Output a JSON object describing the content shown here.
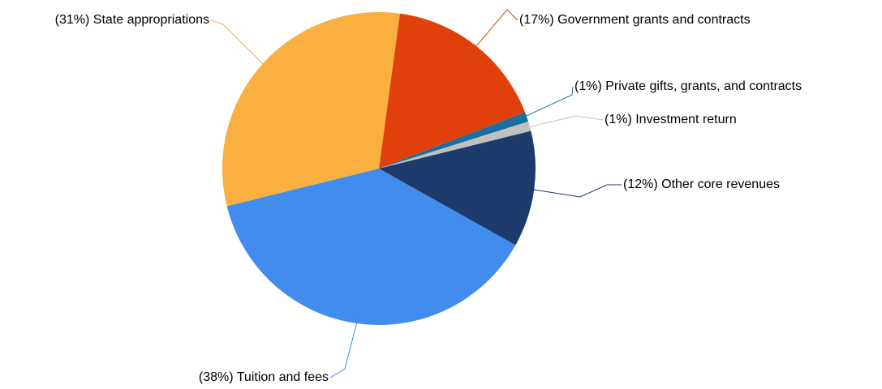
{
  "chart_data": {
    "type": "pie",
    "categories": [
      "Government grants and contracts",
      "Private gifts, grants, and contracts",
      "Investment return",
      "Other core revenues",
      "Tuition and fees",
      "State appropriations"
    ],
    "values": [
      17,
      1,
      1,
      12,
      38,
      31
    ],
    "value_labels": [
      "(17%)",
      "(1%)",
      "(1%)",
      "(12%)",
      "(38%)",
      "(31%)"
    ],
    "colors": [
      "#e0400a",
      "#1a6fa0",
      "#c0c0c0",
      "#1c3a6a",
      "#418ced",
      "#f9b040"
    ]
  }
}
